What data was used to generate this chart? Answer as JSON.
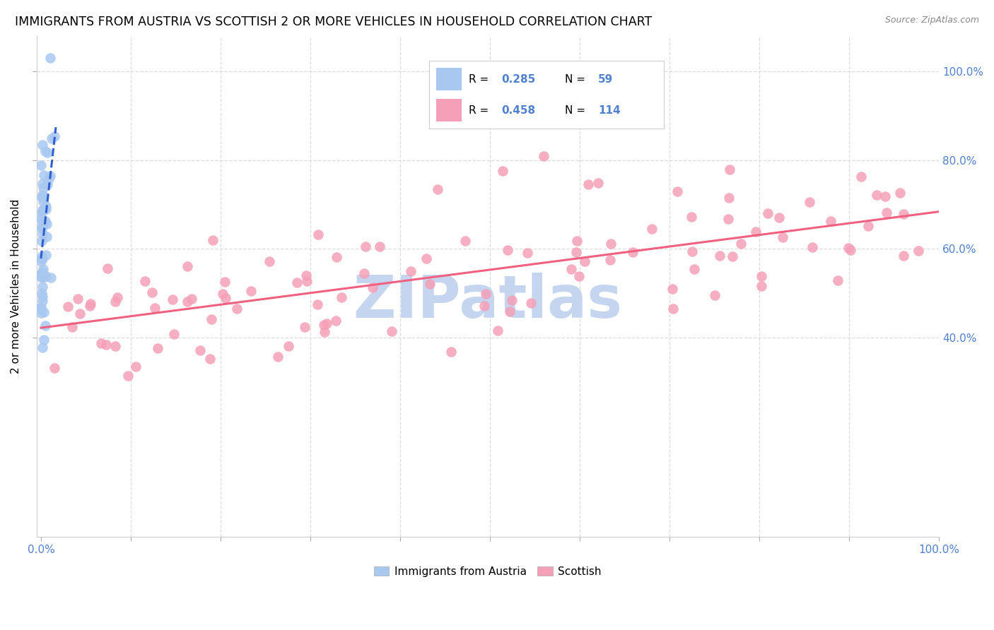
{
  "title": "IMMIGRANTS FROM AUSTRIA VS SCOTTISH 2 OR MORE VEHICLES IN HOUSEHOLD CORRELATION CHART",
  "source": "Source: ZipAtlas.com",
  "ylabel": "2 or more Vehicles in Household",
  "legend_austria_r": "0.285",
  "legend_austria_n": "59",
  "legend_scottish_r": "0.458",
  "legend_scottish_n": "114",
  "legend_austria_label": "Immigrants from Austria",
  "legend_scottish_label": "Scottish",
  "austria_color": "#a8c8f0",
  "scottish_color": "#f5a0b8",
  "austria_line_color": "#3060d0",
  "scottish_line_color": "#f06080",
  "tick_color": "#5080d0",
  "watermark_color": "#c5d5f0",
  "grid_color": "#dddddd",
  "right_ytick_values": [
    0.4,
    0.6,
    0.8,
    1.0
  ],
  "right_ytick_labels": [
    "40.0%",
    "60.0%",
    "80.0%",
    "100.0%"
  ],
  "xlim": [
    -0.005,
    1.0
  ],
  "ylim": [
    -0.05,
    1.08
  ],
  "austria_seed": 77,
  "scottish_seed": 42
}
